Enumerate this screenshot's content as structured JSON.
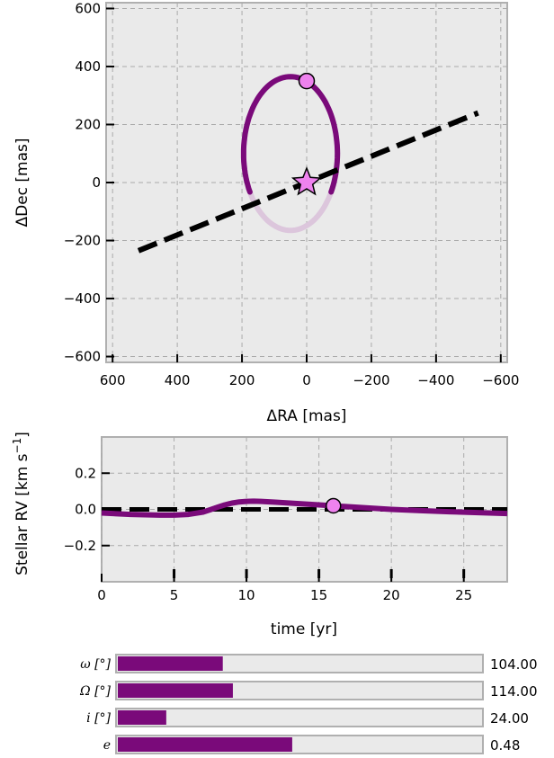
{
  "colors": {
    "orbit": "#7a0a7a",
    "orbit_faded": "#dcc6dc",
    "marker_fill": "#ee82ee",
    "axes_bg": "#eaeaea",
    "grid": "#aaaaaa",
    "line_of_nodes": "#000000",
    "slider_track": "#eaeaea",
    "slider_fill": "#7a0a7a"
  },
  "chart_data": [
    {
      "type": "line",
      "name": "sky-plane-orbit",
      "xlabel": "ΔRA [mas]",
      "ylabel": "ΔDec [mas]",
      "xlim": [
        620,
        -620
      ],
      "ylim": [
        -620,
        620
      ],
      "xticks": [
        600,
        400,
        200,
        0,
        -200,
        -400,
        -600
      ],
      "xtick_labels": [
        "600",
        "400",
        "200",
        "0",
        "−200",
        "−400",
        "−600"
      ],
      "yticks": [
        600,
        400,
        200,
        0,
        -200,
        -400,
        -600
      ],
      "ytick_labels": [
        "600",
        "400",
        "200",
        "0",
        "−200",
        "−400",
        "−600"
      ],
      "grid": true,
      "orbit_ellipse": {
        "center": [
          50,
          100
        ],
        "semi_axis_ra": 145,
        "semi_axis_dec": 265,
        "visible_from_deg": -30,
        "visible_to_deg": 210
      },
      "line_of_nodes": {
        "x": [
          520,
          -530
        ],
        "y": [
          -235,
          240
        ]
      },
      "planet_position": {
        "x": 0,
        "y": 350
      },
      "star_position": {
        "x": 0,
        "y": 0
      }
    },
    {
      "type": "line",
      "name": "stellar-rv",
      "xlabel": "time [yr]",
      "ylabel": "Stellar RV [km s⁻¹]",
      "xlim": [
        0,
        28
      ],
      "ylim": [
        -0.4,
        0.4
      ],
      "xticks": [
        0,
        5,
        10,
        15,
        20,
        25
      ],
      "xtick_labels": [
        "0",
        "5",
        "10",
        "15",
        "20",
        "25"
      ],
      "yticks": [
        0.2,
        0.0,
        -0.2
      ],
      "ytick_labels": [
        "0.2",
        "0.0",
        "−0.2"
      ],
      "grid": true,
      "series": [
        {
          "x": [
            0,
            2,
            4,
            5,
            6,
            7,
            7.5,
            8,
            8.5,
            9,
            9.5,
            10,
            10.5,
            11,
            12,
            13,
            14,
            15,
            16,
            17,
            18,
            19,
            20,
            22,
            24,
            26,
            28
          ],
          "y": [
            -0.02,
            -0.028,
            -0.032,
            -0.032,
            -0.028,
            -0.015,
            -0.002,
            0.012,
            0.025,
            0.035,
            0.041,
            0.044,
            0.045,
            0.044,
            0.04,
            0.035,
            0.03,
            0.025,
            0.02,
            0.015,
            0.01,
            0.005,
            0.0,
            -0.007,
            -0.013,
            -0.018,
            -0.023
          ]
        }
      ],
      "zero_line": 0.0,
      "time_markers": [
        5,
        10,
        15,
        20,
        25
      ],
      "current_point": {
        "x": 16,
        "y": 0.02
      }
    }
  ],
  "sliders": [
    {
      "label": "ω [°]",
      "value": 104,
      "max": 360,
      "value_text": "104.00"
    },
    {
      "label": "Ω [°]",
      "value": 114,
      "max": 360,
      "value_text": "114.00"
    },
    {
      "label": "i [°]",
      "value": 24,
      "max": 180,
      "value_text": "24.00"
    },
    {
      "label": "e",
      "value": 0.48,
      "max": 1,
      "value_text": "0.48"
    }
  ]
}
